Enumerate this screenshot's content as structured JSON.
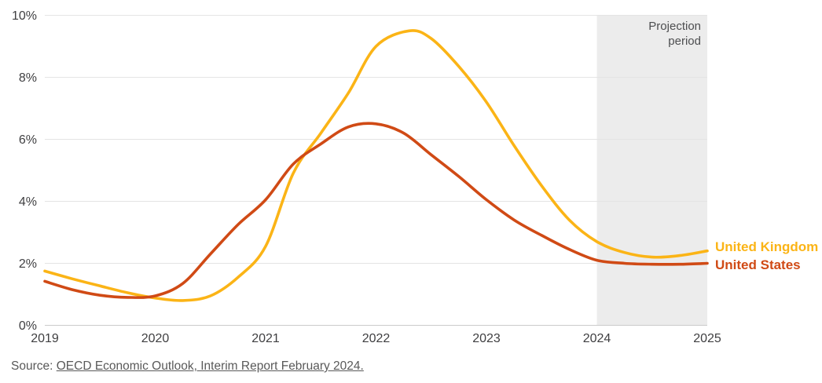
{
  "chart_data": {
    "type": "line",
    "unit": "%",
    "x_range": [
      2019,
      2025
    ],
    "ylim": [
      0,
      10
    ],
    "grid": "horizontal",
    "legend_position": "right",
    "xticks": {
      "values": [
        2019,
        2020,
        2021,
        2022,
        2023,
        2024,
        2025
      ],
      "labels": [
        "2019",
        "2020",
        "2021",
        "2022",
        "2023",
        "2024",
        "2025"
      ]
    },
    "yticks": {
      "values": [
        0,
        2,
        4,
        6,
        8,
        10
      ],
      "labels": [
        "0%",
        "2%",
        "4%",
        "6%",
        "8%",
        "10%"
      ]
    },
    "projection": {
      "label": "Projection period",
      "start": 2024,
      "end": 2025,
      "fill": "#ECECEC"
    },
    "series": [
      {
        "name": "United Kingdom",
        "color": "#FBB416",
        "points": [
          [
            2019.0,
            1.75
          ],
          [
            2019.25,
            1.5
          ],
          [
            2019.5,
            1.27
          ],
          [
            2019.75,
            1.05
          ],
          [
            2020.0,
            0.88
          ],
          [
            2020.25,
            0.8
          ],
          [
            2020.5,
            0.95
          ],
          [
            2020.75,
            1.55
          ],
          [
            2021.0,
            2.55
          ],
          [
            2021.25,
            4.9
          ],
          [
            2021.5,
            6.2
          ],
          [
            2021.75,
            7.5
          ],
          [
            2022.0,
            9.0
          ],
          [
            2022.3,
            9.5
          ],
          [
            2022.5,
            9.25
          ],
          [
            2022.75,
            8.35
          ],
          [
            2023.0,
            7.2
          ],
          [
            2023.25,
            5.8
          ],
          [
            2023.5,
            4.5
          ],
          [
            2023.75,
            3.4
          ],
          [
            2024.0,
            2.7
          ],
          [
            2024.25,
            2.35
          ],
          [
            2024.5,
            2.2
          ],
          [
            2024.75,
            2.25
          ],
          [
            2025.0,
            2.4
          ]
        ]
      },
      {
        "name": "United States",
        "color": "#D04A15",
        "points": [
          [
            2019.0,
            1.42
          ],
          [
            2019.25,
            1.15
          ],
          [
            2019.5,
            0.97
          ],
          [
            2019.75,
            0.9
          ],
          [
            2020.0,
            0.95
          ],
          [
            2020.25,
            1.35
          ],
          [
            2020.5,
            2.3
          ],
          [
            2020.75,
            3.25
          ],
          [
            2021.0,
            4.05
          ],
          [
            2021.25,
            5.2
          ],
          [
            2021.5,
            5.85
          ],
          [
            2021.75,
            6.4
          ],
          [
            2022.0,
            6.5
          ],
          [
            2022.25,
            6.2
          ],
          [
            2022.5,
            5.5
          ],
          [
            2022.75,
            4.8
          ],
          [
            2023.0,
            4.05
          ],
          [
            2023.25,
            3.4
          ],
          [
            2023.5,
            2.9
          ],
          [
            2023.75,
            2.45
          ],
          [
            2024.0,
            2.1
          ],
          [
            2024.25,
            2.0
          ],
          [
            2024.5,
            1.97
          ],
          [
            2024.75,
            1.97
          ],
          [
            2025.0,
            2.0
          ]
        ]
      }
    ]
  },
  "source": {
    "prefix": "Source: ",
    "link_text": "OECD Economic Outlook, Interim Report February 2024."
  }
}
